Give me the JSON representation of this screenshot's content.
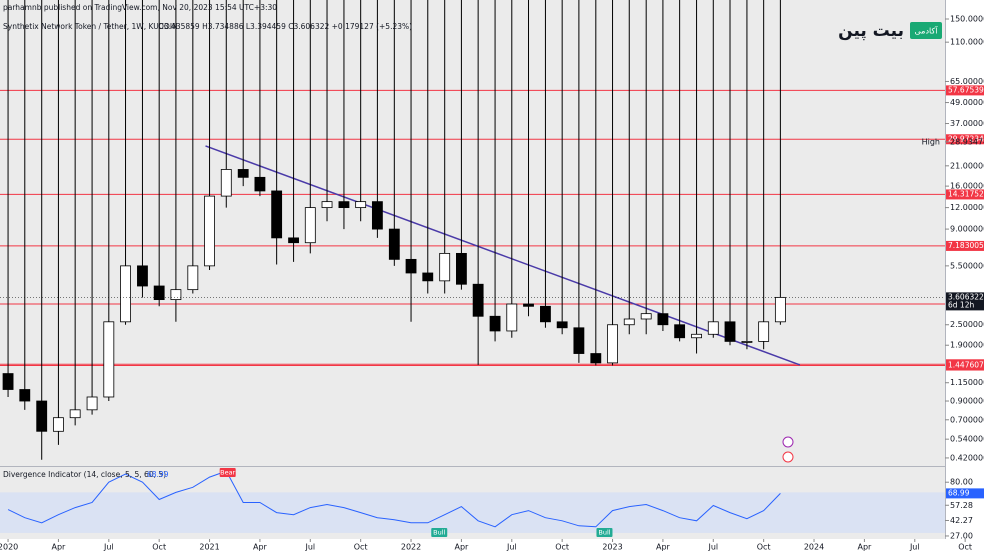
{
  "header": {
    "publisher": "parhamnb published on TradingView.com, Nov 20, 2023 15:54 UTC+3:30",
    "symbol": "Synthetix Network Token / Tether, 1W, KUCOIN",
    "quote": "O3.435859  H3.734886  L3.394459  C3.606322  +0.179127 (+5.23%)"
  },
  "logo": {
    "name": "بیت پین",
    "badge": "آکادمی"
  },
  "chart_data": [
    {
      "type": "candlestick",
      "log_scale": true,
      "x": [
        2020,
        2020.083,
        2020.167,
        2020.25,
        2020.333,
        2020.417,
        2020.5,
        2020.583,
        2020.667,
        2020.75,
        2020.833,
        2020.917,
        2021,
        2021.083,
        2021.167,
        2021.25,
        2021.333,
        2021.417,
        2021.5,
        2021.583,
        2021.667,
        2021.75,
        2021.833,
        2021.917,
        2022,
        2022.083,
        2022.167,
        2022.25,
        2022.333,
        2022.417,
        2022.5,
        2022.583,
        2022.667,
        2022.75,
        2022.833,
        2022.917,
        2023,
        2023.083,
        2023.167,
        2023.25,
        2023.333,
        2023.417,
        2023.5,
        2023.583,
        2023.667,
        2023.75,
        2023.833
      ],
      "open": [
        1.3,
        1.05,
        0.9,
        0.6,
        0.72,
        0.8,
        0.95,
        2.6,
        5.5,
        4.2,
        3.5,
        4.0,
        5.5,
        14,
        20,
        18,
        15,
        8,
        7.5,
        12,
        13,
        12,
        13,
        9,
        6,
        5,
        4.5,
        6.5,
        4.3,
        2.8,
        2.3,
        3.3,
        3.2,
        2.6,
        2.4,
        1.7,
        1.5,
        2.5,
        2.7,
        2.9,
        2.5,
        2.1,
        2.2,
        2.6,
        2.0,
        2.0,
        2.6
      ],
      "high": 28.934747,
      "low": [
        0.95,
        0.8,
        0.41,
        0.5,
        0.65,
        0.75,
        0.9,
        2.5,
        3.6,
        3.2,
        2.6,
        3.8,
        5.2,
        12,
        16,
        14,
        5.6,
        5.8,
        6.5,
        10,
        9,
        10,
        8,
        5.5,
        2.6,
        3.8,
        3.8,
        4,
        1.46,
        2,
        2.1,
        2.8,
        2.4,
        2.2,
        1.5,
        1.45,
        1.45,
        2.2,
        2.2,
        2.3,
        2.0,
        1.7,
        2.1,
        1.9,
        1.8,
        1.8,
        2.5
      ],
      "close": [
        1.05,
        0.9,
        0.6,
        0.72,
        0.8,
        0.95,
        2.6,
        5.5,
        4.2,
        3.5,
        4.0,
        5.5,
        14,
        20,
        18,
        15,
        8,
        7.5,
        12,
        13,
        12,
        13,
        9,
        6,
        5.0,
        4.5,
        6.5,
        4.3,
        2.8,
        2.3,
        3.3,
        3.2,
        2.6,
        2.4,
        1.7,
        1.5,
        2.5,
        2.7,
        2.9,
        2.5,
        2.1,
        2.2,
        2.6,
        2.0,
        2.0,
        2.6,
        3.606322
      ],
      "up_color": "#ffffff",
      "down_color": "#000000",
      "xlim": [
        2019.96,
        2024.65
      ],
      "ylim": [
        0.377,
        193.5
      ],
      "yticks": [
        {
          "value": 150,
          "label": "150.000000"
        },
        {
          "value": 110,
          "label": "110.000000"
        },
        {
          "value": 65,
          "label": "65.000000"
        },
        {
          "value": 49,
          "label": "49.000000"
        },
        {
          "value": 37,
          "label": "37.000000"
        },
        {
          "value": 21,
          "label": "21.000000"
        },
        {
          "value": 16,
          "label": "16.000000"
        },
        {
          "value": 12,
          "label": "12.000000"
        },
        {
          "value": 9,
          "label": "9.000000"
        },
        {
          "value": 5.5,
          "label": "5.500000"
        },
        {
          "value": 2.5,
          "label": "2.500000"
        },
        {
          "value": 1.9,
          "label": "1.900000"
        },
        {
          "value": 1.15,
          "label": "1.150000"
        },
        {
          "value": 0.9,
          "label": "0.900000"
        },
        {
          "value": 0.7,
          "label": "0.700000"
        },
        {
          "value": 0.54,
          "label": "0.540000"
        },
        {
          "value": 0.42,
          "label": "0.420000"
        }
      ],
      "levels": [
        57.675397,
        29.972343,
        14.317529,
        7.183005,
        3.299884,
        1.472168,
        1.447607
      ],
      "level_color": "#f23645",
      "high_label": "High",
      "last": 3.606322,
      "countdown": "6d 12h",
      "trendline": {
        "x": [
          2020.98,
          2023.93
        ],
        "y": [
          27.4,
          1.46
        ],
        "color": "#4a3aa8"
      }
    },
    {
      "type": "line",
      "title": "Divergence Indicator (14, close, 5, 5, 60, 5)",
      "x": [
        2020,
        2020.083,
        2020.167,
        2020.25,
        2020.333,
        2020.417,
        2020.5,
        2020.583,
        2020.667,
        2020.75,
        2020.833,
        2020.917,
        2021,
        2021.083,
        2021.167,
        2021.25,
        2021.333,
        2021.417,
        2021.5,
        2021.583,
        2021.667,
        2021.75,
        2021.833,
        2021.917,
        2022,
        2022.083,
        2022.167,
        2022.25,
        2022.333,
        2022.417,
        2022.5,
        2022.583,
        2022.667,
        2022.75,
        2022.833,
        2022.917,
        2023,
        2023.083,
        2023.167,
        2023.25,
        2023.333,
        2023.417,
        2023.5,
        2023.583,
        2023.667,
        2023.75,
        2023.833
      ],
      "values": [
        53,
        45,
        40,
        48,
        55,
        60,
        80,
        88,
        80,
        63,
        70,
        75,
        85,
        91,
        60,
        60,
        50,
        48,
        55,
        58,
        55,
        50,
        45,
        43,
        40,
        40,
        48,
        56,
        42,
        36,
        48,
        52,
        45,
        42,
        37,
        36,
        52,
        56,
        58,
        52,
        45,
        42,
        57,
        50,
        44,
        52,
        68.99
      ],
      "color": "#2962ff",
      "band": [
        70,
        30
      ],
      "band_color": "#d6e0f5",
      "xlim": [
        2019.96,
        2024.65
      ],
      "ylim": [
        25,
        95
      ],
      "yticks": [
        {
          "value": 80,
          "label": "80.00"
        },
        57.28,
        42.27,
        {
          "value": 27,
          "label": "27.00"
        }
      ],
      "signals": [
        {
          "label": "Bear",
          "x": 2021.09,
          "color": "#f23645"
        },
        {
          "label": "Bull",
          "x": 2022.14,
          "color": "#22ab94"
        },
        {
          "label": "Bull",
          "x": 2022.96,
          "color": "#22ab94"
        }
      ],
      "xticks": [
        {
          "value": 2020,
          "label": "2020"
        },
        {
          "value": 2020.25,
          "label": "Apr"
        },
        {
          "value": 2020.5,
          "label": "Jul"
        },
        {
          "value": 2020.75,
          "label": "Oct"
        },
        {
          "value": 2021,
          "label": "2021"
        },
        {
          "value": 2021.25,
          "label": "Apr"
        },
        {
          "value": 2021.5,
          "label": "Jul"
        },
        {
          "value": 2021.75,
          "label": "Oct"
        },
        {
          "value": 2022,
          "label": "2022"
        },
        {
          "value": 2022.25,
          "label": "Apr"
        },
        {
          "value": 2022.5,
          "label": "Jul"
        },
        {
          "value": 2022.75,
          "label": "Oct"
        },
        {
          "value": 2023,
          "label": "2023"
        },
        {
          "value": 2023.25,
          "label": "Apr"
        },
        {
          "value": 2023.5,
          "label": "Jul"
        },
        {
          "value": 2023.75,
          "label": "Oct"
        },
        {
          "value": 2024,
          "label": "2024"
        },
        {
          "value": 2024.25,
          "label": "Apr"
        },
        {
          "value": 2024.5,
          "label": "Jul"
        },
        {
          "value": 2024.75,
          "label": "Oct"
        }
      ]
    }
  ]
}
